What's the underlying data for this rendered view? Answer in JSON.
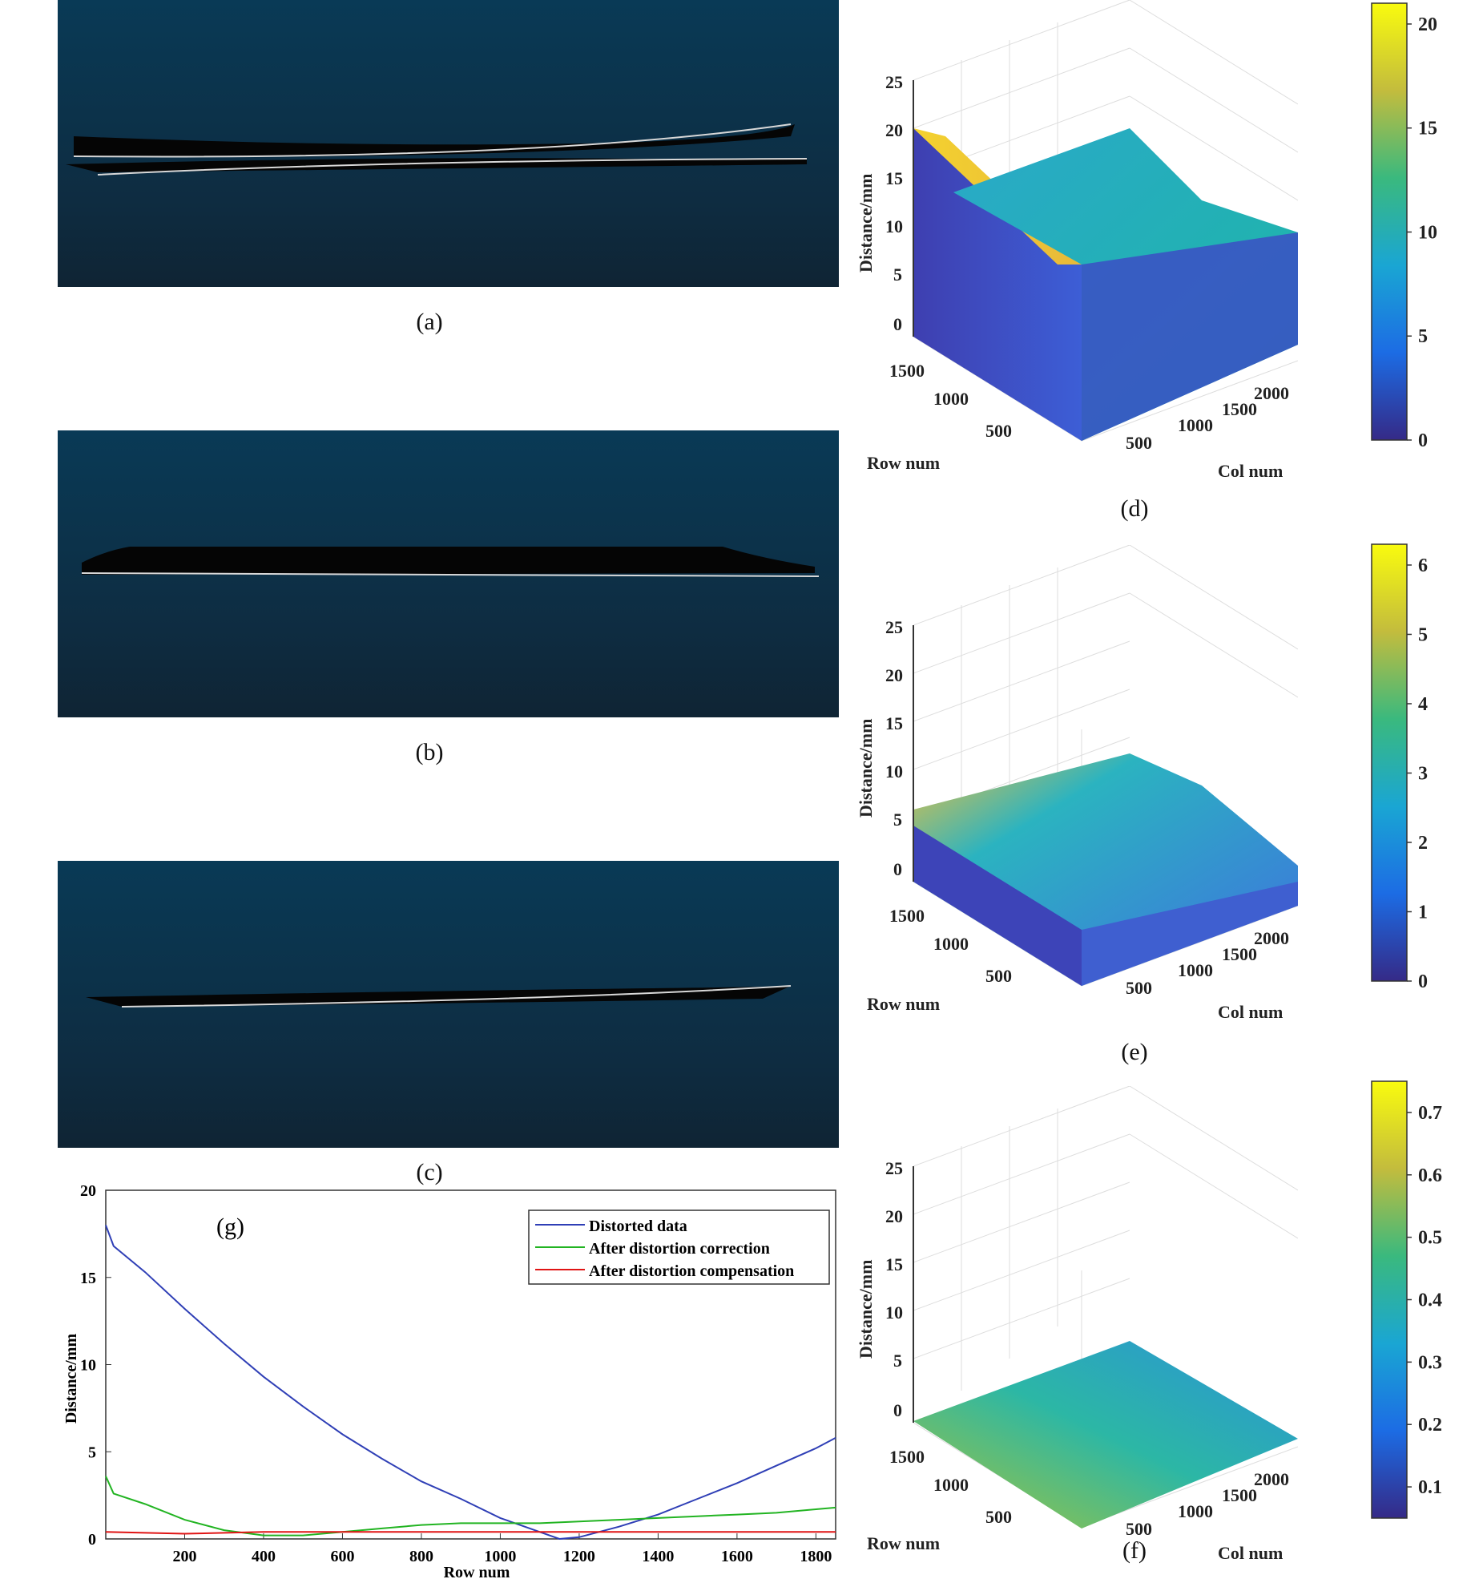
{
  "captions": {
    "a": "(a)",
    "b": "(b)",
    "c": "(c)",
    "d": "(d)",
    "e": "(e)",
    "f": "(f)",
    "g": "(g)"
  },
  "colors": {
    "panel_top": "#093a56",
    "panel_bottom": "#0f2434",
    "distorted": "#2f3fb6",
    "correction": "#22b422",
    "compensation": "#e01515",
    "parula_low": "#352a87",
    "parula_high": "#f9fb0e"
  },
  "chart_data": [
    {
      "id": "d",
      "type": "surface3d",
      "zlabel": "Distance/mm",
      "xlabel": "Col num",
      "ylabel": "Row num",
      "zticks": [
        "25",
        "20",
        "15",
        "10",
        "5",
        "0"
      ],
      "row_ticks": [
        "1500",
        "1000",
        "500"
      ],
      "col_ticks": [
        "500",
        "1000",
        "1500",
        "2000"
      ],
      "zlim": [
        0,
        25
      ],
      "colorbar_ticks": [
        "20",
        "15",
        "10",
        "5",
        "0"
      ],
      "colorbar_range": [
        0,
        21
      ]
    },
    {
      "id": "e",
      "type": "surface3d",
      "zlabel": "Distance/mm",
      "xlabel": "Col num",
      "ylabel": "Row num",
      "zticks": [
        "25",
        "20",
        "15",
        "10",
        "5",
        "0"
      ],
      "row_ticks": [
        "1500",
        "1000",
        "500"
      ],
      "col_ticks": [
        "500",
        "1000",
        "1500",
        "2000"
      ],
      "zlim": [
        0,
        25
      ],
      "colorbar_ticks": [
        "6",
        "5",
        "4",
        "3",
        "2",
        "1",
        "0"
      ],
      "colorbar_range": [
        0,
        6.3
      ]
    },
    {
      "id": "f",
      "type": "surface3d",
      "zlabel": "Distance/mm",
      "xlabel": "Col num",
      "ylabel": "Row num",
      "zticks": [
        "25",
        "20",
        "15",
        "10",
        "5",
        "0"
      ],
      "row_ticks": [
        "1500",
        "1000",
        "500"
      ],
      "col_ticks": [
        "500",
        "1000",
        "1500",
        "2000"
      ],
      "zlim": [
        0,
        25
      ],
      "colorbar_ticks": [
        "0.7",
        "0.6",
        "0.5",
        "0.4",
        "0.3",
        "0.2",
        "0.1"
      ],
      "colorbar_range": [
        0.05,
        0.75
      ]
    },
    {
      "id": "g",
      "type": "line",
      "xlabel": "Row num",
      "ylabel": "Distance/mm",
      "xlim": [
        0,
        1850
      ],
      "ylim": [
        0,
        20
      ],
      "xticks": [
        "200",
        "400",
        "600",
        "800",
        "1000",
        "1200",
        "1400",
        "1600",
        "1800"
      ],
      "yticks": [
        "0",
        "5",
        "10",
        "15",
        "20"
      ],
      "legend_position": "top-right",
      "series": [
        {
          "name": "Distorted data",
          "x": [
            0,
            20,
            100,
            200,
            300,
            400,
            500,
            600,
            700,
            800,
            900,
            1000,
            1100,
            1150,
            1200,
            1300,
            1400,
            1500,
            1600,
            1700,
            1800,
            1850
          ],
          "y": [
            18.0,
            16.8,
            15.3,
            13.2,
            11.2,
            9.3,
            7.6,
            6.0,
            4.6,
            3.3,
            2.3,
            1.2,
            0.4,
            0.0,
            0.1,
            0.7,
            1.4,
            2.3,
            3.2,
            4.2,
            5.2,
            5.8
          ]
        },
        {
          "name": "After distortion correction",
          "x": [
            0,
            20,
            100,
            200,
            300,
            400,
            500,
            600,
            700,
            800,
            900,
            1000,
            1100,
            1200,
            1300,
            1400,
            1500,
            1600,
            1700,
            1800,
            1850
          ],
          "y": [
            3.6,
            2.6,
            2.0,
            1.1,
            0.5,
            0.2,
            0.2,
            0.4,
            0.6,
            0.8,
            0.9,
            0.9,
            0.9,
            1.0,
            1.1,
            1.2,
            1.3,
            1.4,
            1.5,
            1.7,
            1.8
          ]
        },
        {
          "name": "After distortion compensation",
          "x": [
            0,
            200,
            400,
            600,
            800,
            1000,
            1200,
            1400,
            1600,
            1800,
            1850
          ],
          "y": [
            0.4,
            0.3,
            0.4,
            0.4,
            0.4,
            0.4,
            0.4,
            0.4,
            0.4,
            0.4,
            0.4
          ]
        }
      ]
    }
  ]
}
